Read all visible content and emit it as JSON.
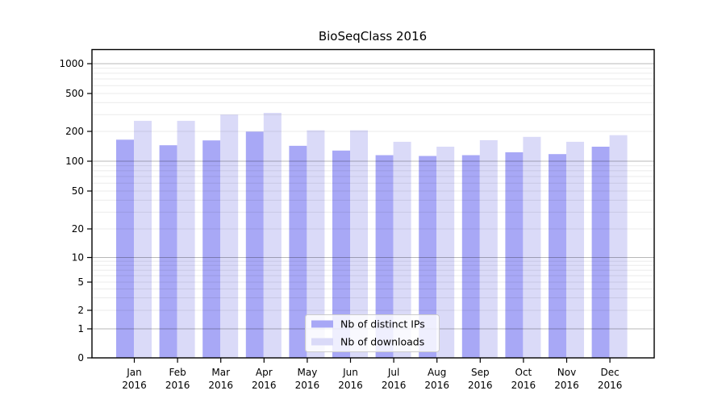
{
  "chart_data": {
    "type": "bar",
    "title": "BioSeqClass 2016",
    "categories": [
      "Jan",
      "Feb",
      "Mar",
      "Apr",
      "May",
      "Jun",
      "Jul",
      "Aug",
      "Sep",
      "Oct",
      "Nov",
      "Dec"
    ],
    "xlabel_line2": "2016",
    "series": [
      {
        "name": "Nb of distinct IPs",
        "color": "#a8a8f6",
        "values": [
          165,
          145,
          162,
          199,
          143,
          128,
          115,
          113,
          115,
          123,
          118,
          140
        ]
      },
      {
        "name": "Nb of downloads",
        "color": "#dadaf8",
        "values": [
          258,
          258,
          300,
          313,
          205,
          205,
          157,
          140,
          163,
          176,
          157,
          183
        ]
      }
    ],
    "yticks": [
      1000,
      500,
      200,
      100,
      50,
      20,
      10,
      5,
      2,
      1,
      0
    ],
    "yscale": "log",
    "xlabel": "",
    "ylabel": "",
    "grid": true,
    "legend_position": "bottom-center-inside"
  },
  "colors": {
    "background": "#ffffff",
    "axis": "#000000",
    "grid_minor": "rgba(0,0,0,0.08)",
    "grid_major": "rgba(0,0,0,0.28)",
    "text": "#000000"
  }
}
